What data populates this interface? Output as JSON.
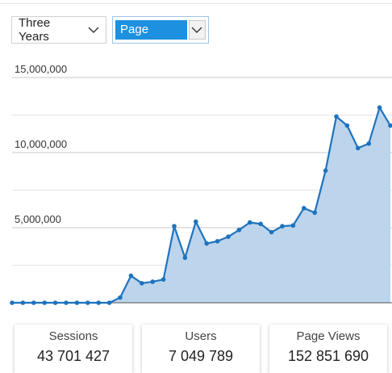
{
  "controls": {
    "range_select": {
      "value": "Three Years"
    },
    "metric_select": {
      "value": "Page Views"
    }
  },
  "chart_data": {
    "type": "area",
    "ylim": [
      0,
      15000000
    ],
    "y_ticks": [
      "5,000,000",
      "10,000,000",
      "15,000,000"
    ],
    "y_tick_values": [
      5000000,
      10000000,
      15000000
    ],
    "color": "#1e73be",
    "fill_color": "#bcd4ec",
    "values": [
      0,
      0,
      0,
      0,
      0,
      0,
      0,
      0,
      0,
      0,
      350000,
      1800000,
      1300000,
      1400000,
      1550000,
      5100000,
      3000000,
      5400000,
      3950000,
      4100000,
      4400000,
      4850000,
      5350000,
      5250000,
      4700000,
      5100000,
      5150000,
      6300000,
      6000000,
      8800000,
      12400000,
      11800000,
      10300000,
      10600000,
      13000000,
      11800000
    ]
  },
  "stats": [
    {
      "label": "Sessions",
      "value": "43 701 427"
    },
    {
      "label": "Users",
      "value": "7 049 789"
    },
    {
      "label": "Page Views",
      "value": "152 851 690"
    }
  ]
}
